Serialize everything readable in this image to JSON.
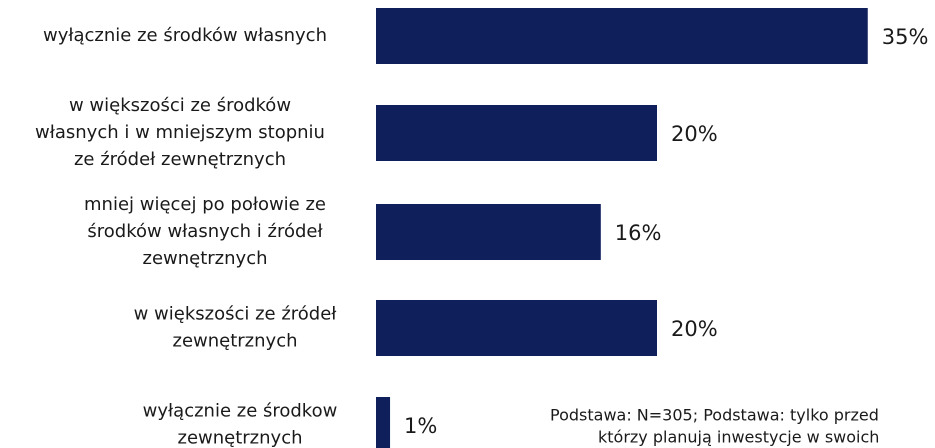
{
  "chart_data": {
    "type": "bar",
    "orientation": "horizontal",
    "color": "#0f1f5c",
    "categories": [
      [
        "wyłącznie ze środków własnych"
      ],
      [
        "w większości ze środków",
        "własnych i w mniejszym stopniu",
        "ze źródeł zewnętrznych"
      ],
      [
        "mniej więcej po połowie ze",
        "środków własnych i źródeł",
        "zewnętrznych"
      ],
      [
        "w większości ze źródeł",
        "zewnętrznych"
      ],
      [
        "wyłącznie ze środkow",
        "zewnętrznych"
      ]
    ],
    "values": [
      35,
      20,
      16,
      20,
      1
    ],
    "value_labels": [
      "35%",
      "20%",
      "16%",
      "20%",
      "1%"
    ],
    "note": [
      "Podstawa: N=305; Podstawa: tylko przed",
      "którzy planują inwestycje w swoich"
    ]
  }
}
